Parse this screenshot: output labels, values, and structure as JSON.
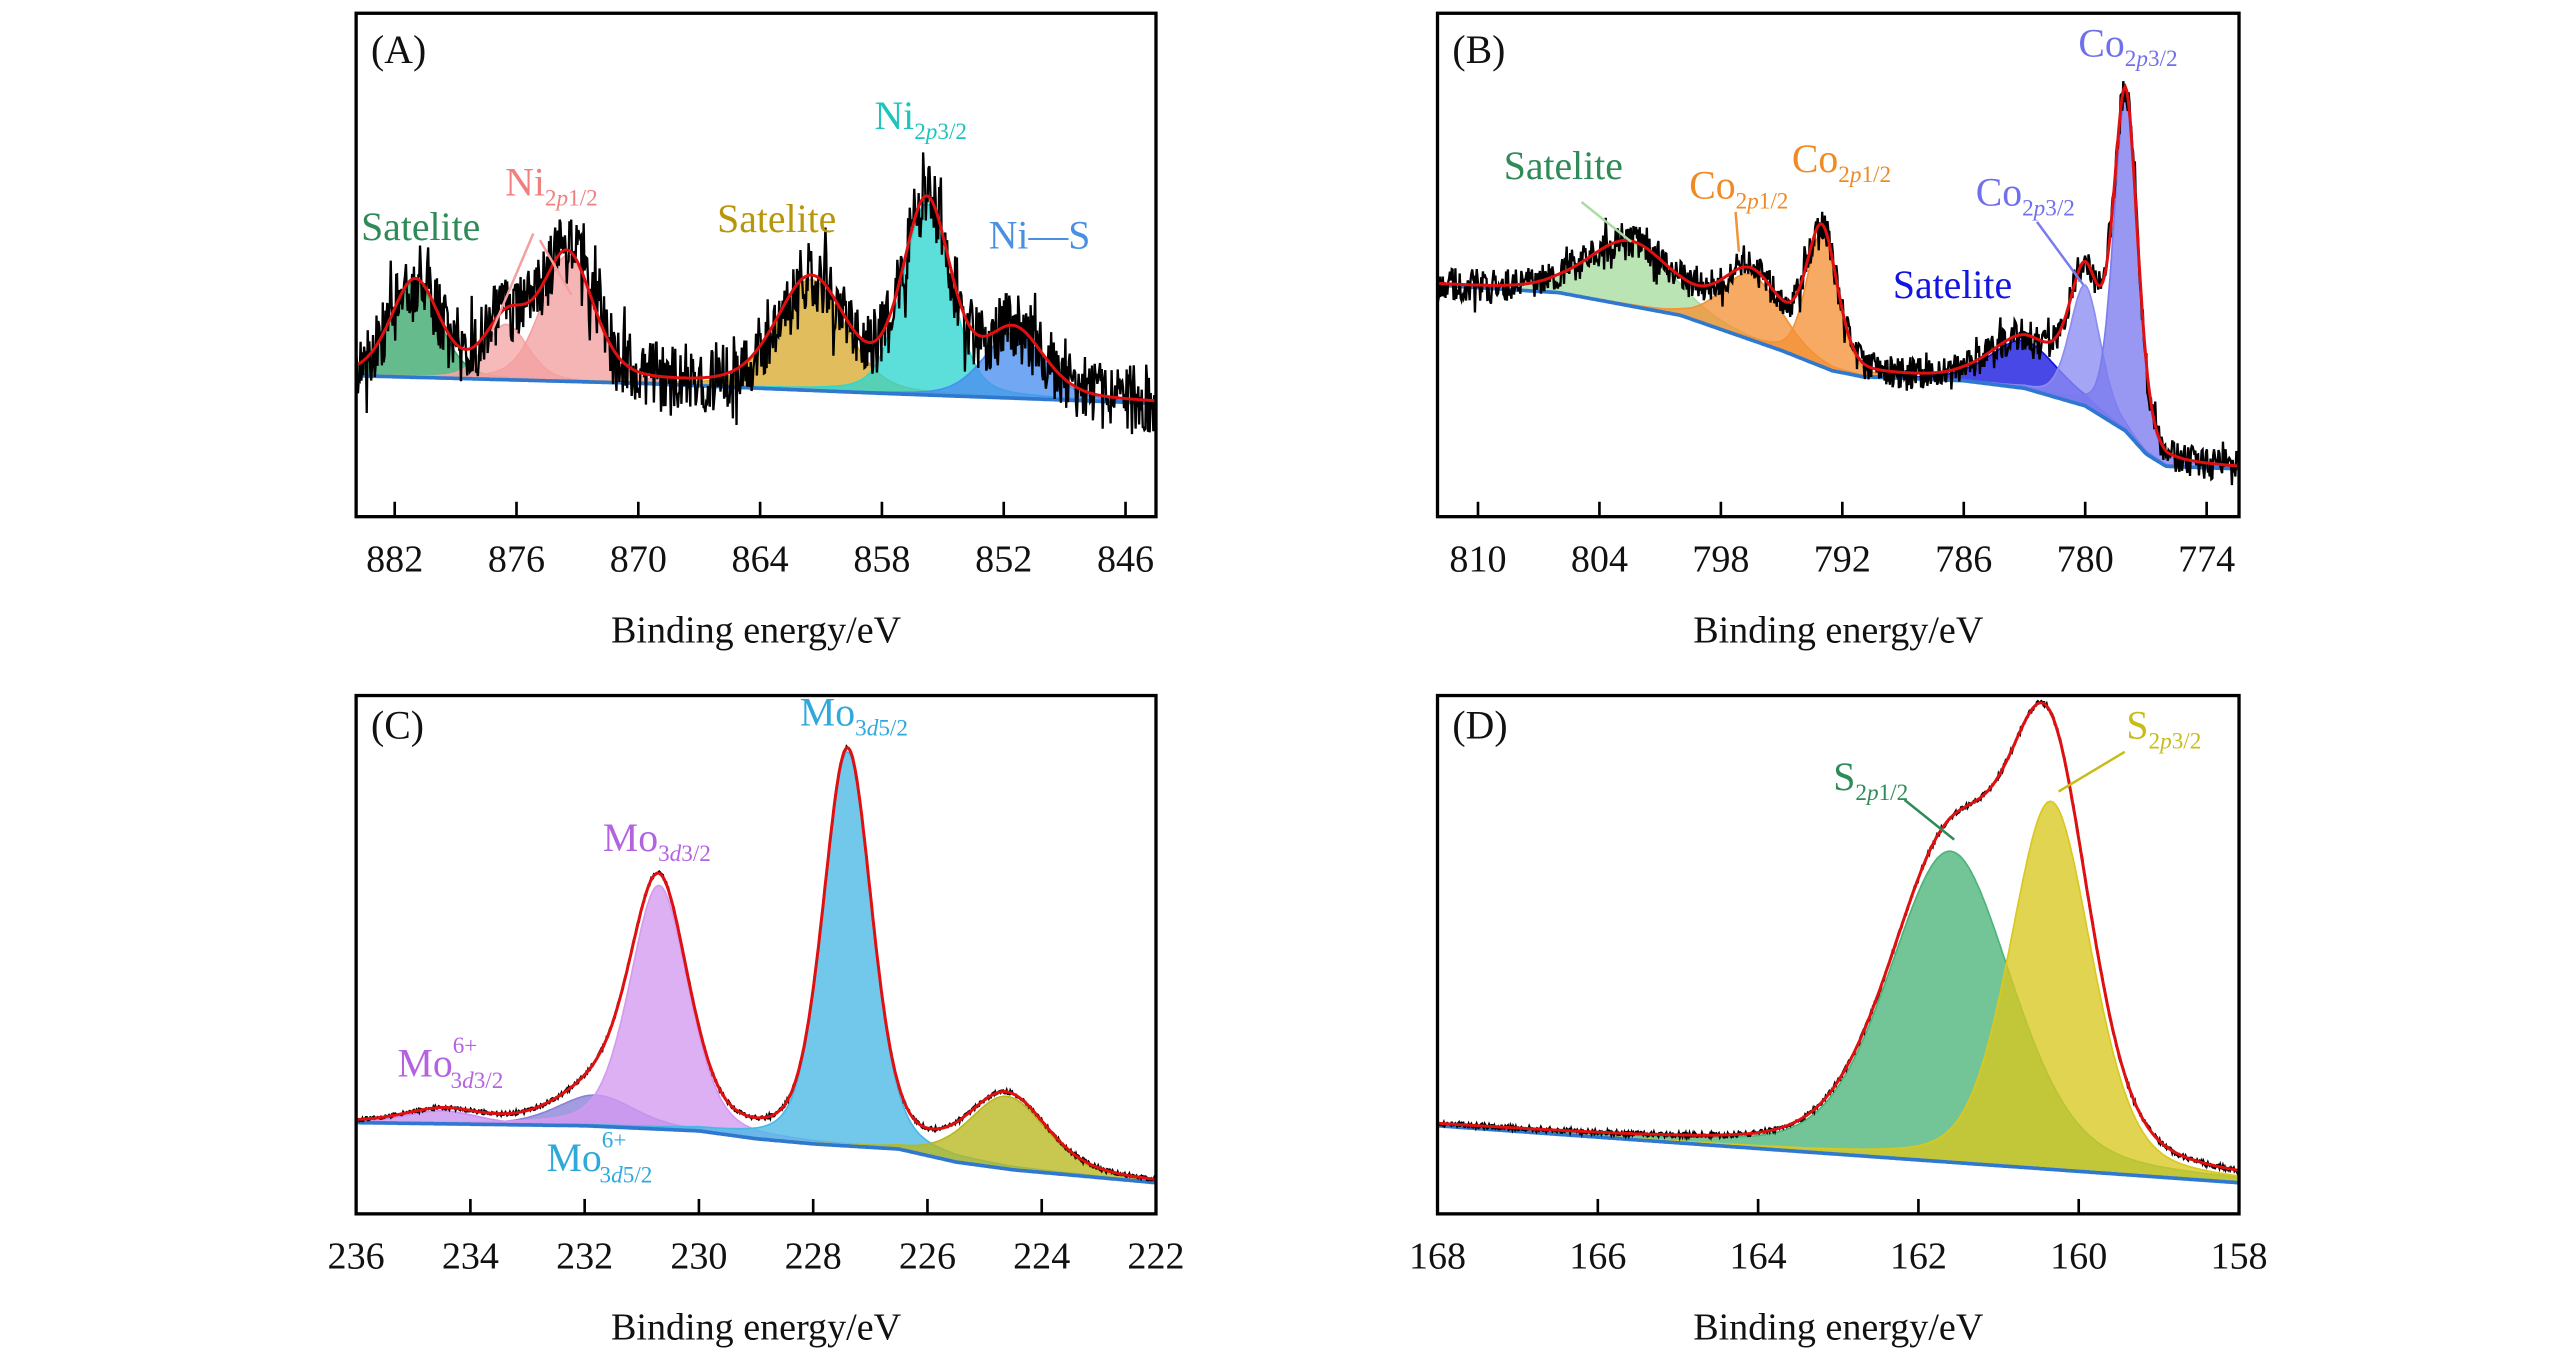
{
  "chart_data": [
    {
      "type": "area",
      "panel": "(A)",
      "xlabel": "Binding energy/eV",
      "ylabel": "",
      "xlim": [
        883.9,
        844.5
      ],
      "ylim": [
        0,
        100
      ],
      "xticks": [
        882,
        876,
        870,
        864,
        858,
        852,
        846
      ],
      "baseline": [
        [
          883.9,
          28
        ],
        [
          870,
          26.5
        ],
        [
          858,
          24.5
        ],
        [
          844.5,
          22.5
        ]
      ],
      "components": [
        {
          "label": "Satelite",
          "center": 881.0,
          "height": 19,
          "fwhm": 2.8,
          "color": "#3aa86a"
        },
        {
          "label": "Ni2p1/2",
          "center": 876.5,
          "height": 11,
          "fwhm": 2.5,
          "color": "#f4a6a6"
        },
        {
          "label": "Ni2p1/2",
          "center": 873.5,
          "height": 25,
          "fwhm": 3.0,
          "color": "#f4a0a0"
        },
        {
          "label": "Satelite",
          "center": 861.5,
          "height": 22,
          "fwhm": 4.0,
          "color": "#d8aa30"
        },
        {
          "label": "Ni2p3/2",
          "center": 855.8,
          "height": 38,
          "fwhm": 2.8,
          "color": "#2ed6d0"
        },
        {
          "label": "Ni—S",
          "center": 851.5,
          "height": 13,
          "fwhm": 3.5,
          "color": "#4a8ef0"
        }
      ],
      "labels": [
        {
          "main": "Satelite",
          "color": "#2e8b57"
        },
        {
          "main": "Ni",
          "sub_pre": "2",
          "sub_it": "p",
          "sub_post": "1/2",
          "color": "#f08080"
        },
        {
          "main": "Satelite",
          "color": "#b8960c"
        },
        {
          "main": "Ni",
          "sub_pre": "2",
          "sub_it": "p",
          "sub_post": "3/2",
          "color": "#1fc4bf"
        },
        {
          "main": "Ni—S",
          "color": "#4a90e2"
        }
      ]
    },
    {
      "type": "area",
      "panel": "(B)",
      "xlabel": "Binding energy/eV",
      "ylabel": "",
      "xlim": [
        812.0,
        772.4
      ],
      "ylim": [
        0,
        100
      ],
      "xticks": [
        810,
        804,
        798,
        792,
        786,
        780,
        774
      ],
      "baseline": [
        [
          812,
          46
        ],
        [
          806,
          44.5
        ],
        [
          800,
          40
        ],
        [
          795,
          33
        ],
        [
          792.5,
          29
        ],
        [
          791,
          27.8
        ],
        [
          786,
          27
        ],
        [
          783,
          25.5
        ],
        [
          780,
          22
        ],
        [
          778,
          17
        ],
        [
          777,
          12.5
        ],
        [
          776,
          10
        ],
        [
          772.4,
          9.5
        ]
      ],
      "components": [
        {
          "label": "Satelite",
          "center": 802.5,
          "height": 12.5,
          "fwhm": 5.0,
          "color": "#a8dca0"
        },
        {
          "label": "Co2p1/2",
          "center": 796.5,
          "height": 13,
          "fwhm": 3.5,
          "color": "#f39237"
        },
        {
          "label": "Co2p1/2",
          "center": 793.0,
          "height": 26.5,
          "fwhm": 1.8,
          "color": "#f39237"
        },
        {
          "label": "Satelite",
          "center": 783.0,
          "height": 9.5,
          "fwhm": 4.0,
          "color": "#1414e0"
        },
        {
          "label": "Co2p3/2",
          "center": 780.0,
          "height": 24,
          "fwhm": 1.8,
          "color": "#8c8cf2"
        },
        {
          "label": "Co2p3/2",
          "center": 778.0,
          "height": 66,
          "fwhm": 1.4,
          "color": "#7b7bf0"
        }
      ],
      "labels": [
        {
          "main": "Satelite",
          "color": "#2e8b57"
        },
        {
          "main": "Co",
          "sub_pre": "2",
          "sub_it": "p",
          "sub_post": "1/2",
          "color": "#f08a24"
        },
        {
          "main": "Co",
          "sub_pre": "2",
          "sub_it": "p",
          "sub_post": "1/2",
          "color": "#f08a24"
        },
        {
          "main": "Satelite",
          "color": "#1414e0"
        },
        {
          "main": "Co",
          "sub_pre": "2",
          "sub_it": "p",
          "sub_post": "3/2",
          "color": "#7070ee"
        },
        {
          "main": "Co",
          "sub_pre": "2",
          "sub_it": "p",
          "sub_post": "3/2",
          "color": "#7070ee"
        }
      ]
    },
    {
      "type": "area",
      "panel": "(C)",
      "xlabel": "Binding energy/eV",
      "ylabel": "",
      "xlim": [
        236,
        222
      ],
      "ylim": [
        0,
        100
      ],
      "xticks": [
        236,
        234,
        232,
        230,
        228,
        226,
        224,
        222
      ],
      "baseline": [
        [
          236,
          17.6
        ],
        [
          232,
          17
        ],
        [
          230,
          16
        ],
        [
          229,
          14.5
        ],
        [
          228,
          13.5
        ],
        [
          226.5,
          12.5
        ],
        [
          225.5,
          10
        ],
        [
          224.5,
          8.5
        ],
        [
          222,
          6
        ]
      ],
      "components": [
        {
          "label": "Mo6+3d3/2",
          "center": 234.5,
          "height": 2.5,
          "fwhm": 1.5,
          "color": "#c890f0"
        },
        {
          "label": "Mo6+3d5/2",
          "center": 231.8,
          "height": 6,
          "fwhm": 1.6,
          "color": "#8a80d8"
        },
        {
          "label": "Mo3d3/2",
          "center": 230.7,
          "height": 47,
          "fwhm": 1.2,
          "color": "#d49af0"
        },
        {
          "label": "Mo3d5/2",
          "center": 227.4,
          "height": 76,
          "fwhm": 1.0,
          "color": "#4ab8e6"
        },
        {
          "label": "",
          "center": 224.6,
          "height": 14,
          "fwhm": 1.6,
          "color": "#b8b820"
        }
      ],
      "labels": [
        {
          "main": "Mo",
          "sub_pre": "3",
          "sub_it": "d",
          "sub_post": "5/2",
          "color": "#2fa8dc"
        },
        {
          "main": "Mo",
          "sub_pre": "3",
          "sub_it": "d",
          "sub_post": "3/2",
          "color": "#b463e0"
        },
        {
          "main": "Mo",
          "sup": "6+",
          "sub_pre": "3",
          "sub_it": "d",
          "sub_post": "3/2",
          "color": "#b463e0"
        },
        {
          "main": "Mo",
          "sup": "6+",
          "sub_pre": "3",
          "sub_it": "d",
          "sub_post": "5/2",
          "color": "#2fa8dc"
        }
      ]
    },
    {
      "type": "area",
      "panel": "(D)",
      "xlabel": "Binding energy/eV",
      "ylabel": "",
      "xlim": [
        168,
        158
      ],
      "ylim": [
        0,
        100
      ],
      "xticks": [
        168,
        166,
        164,
        162,
        160,
        158
      ],
      "baseline": [
        [
          168,
          17
        ],
        [
          158,
          6
        ]
      ],
      "components": [
        {
          "label": "S2p1/2",
          "center": 161.6,
          "height": 60,
          "fwhm": 1.8,
          "color": "#4cb47a"
        },
        {
          "label": "S2p3/2",
          "center": 160.35,
          "height": 71,
          "fwhm": 1.2,
          "color": "#d8c820"
        }
      ],
      "labels": [
        {
          "main": "S",
          "sub_pre": "2",
          "sub_it": "p",
          "sub_post": "1/2",
          "color": "#2e8b57"
        },
        {
          "main": "S",
          "sub_pre": "2",
          "sub_it": "p",
          "sub_post": "3/2",
          "color": "#c8bc18"
        }
      ]
    }
  ],
  "colors": {
    "raw": "#000000",
    "envelope": "#e01010",
    "background": "#2f78d0"
  }
}
